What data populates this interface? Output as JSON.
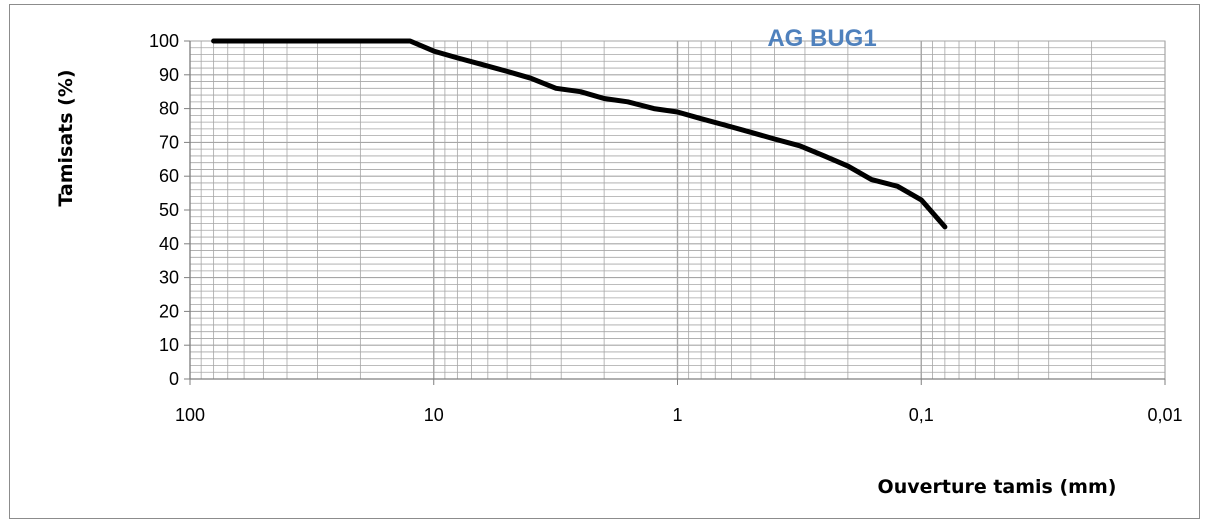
{
  "chart_data": {
    "type": "line",
    "title": "AG BUG1",
    "xlabel": "Ouverture tamis (mm)",
    "ylabel": "Tamisats (%)",
    "xscale": "log",
    "xaxis_reversed": true,
    "xlim": [
      100,
      0.01
    ],
    "ylim": [
      0,
      100
    ],
    "x_tick_labels": [
      "100",
      "10",
      "1",
      "0,1",
      "0,01"
    ],
    "y_tick_labels": [
      "0",
      "10",
      "20",
      "30",
      "40",
      "50",
      "60",
      "70",
      "80",
      "90",
      "100"
    ],
    "grid": true,
    "series": [
      {
        "x": [
          80,
          63,
          50,
          40,
          31.5,
          25,
          20,
          16,
          12.5,
          10,
          8,
          6.3,
          5,
          4,
          3.15,
          2.5,
          2,
          1.6,
          1.25,
          1,
          0.8,
          0.63,
          0.5,
          0.4,
          0.315,
          0.25,
          0.2,
          0.16,
          0.125,
          0.1,
          0.08
        ],
        "values": [
          100,
          100,
          100,
          100,
          100,
          100,
          100,
          100,
          100,
          97,
          95,
          93,
          91,
          89,
          86,
          85,
          83,
          82,
          80,
          79,
          77,
          75,
          73,
          71,
          69,
          66,
          63,
          59,
          57,
          53,
          45
        ]
      }
    ],
    "colors": {
      "line": "#000000",
      "title": "#4f81bd",
      "grid": "#a6a6a6",
      "axis": "#7f7f7f"
    }
  }
}
